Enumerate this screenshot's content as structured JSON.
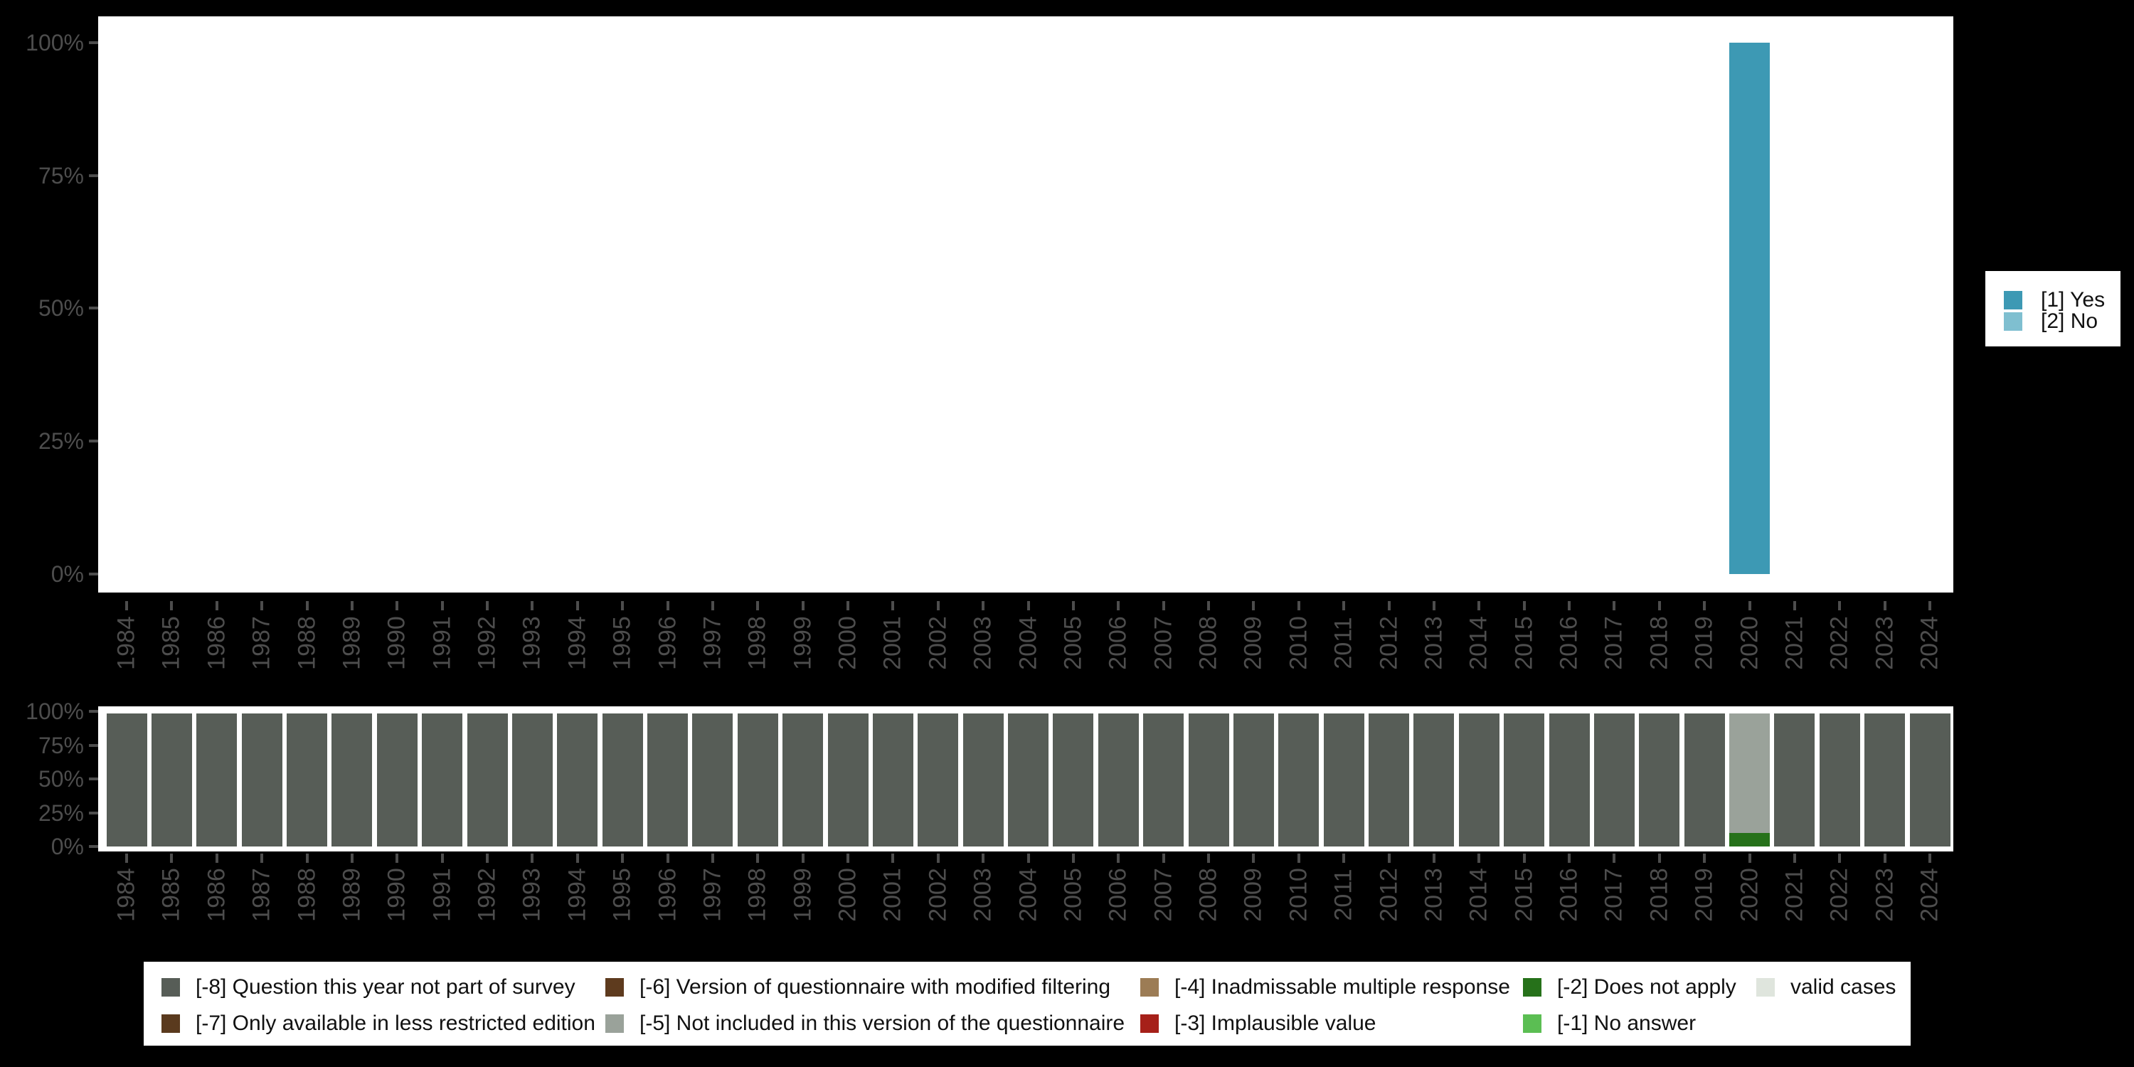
{
  "page": {
    "background": "#000000"
  },
  "chart_data": [
    {
      "id": "variable-availability",
      "type": "bar",
      "stacked": true,
      "unit": "percent",
      "grid": false,
      "categories": [
        "1984",
        "1985",
        "1986",
        "1987",
        "1988",
        "1989",
        "1990",
        "1991",
        "1992",
        "1993",
        "1994",
        "1995",
        "1996",
        "1997",
        "1998",
        "1999",
        "2000",
        "2001",
        "2002",
        "2003",
        "2004",
        "2005",
        "2006",
        "2007",
        "2008",
        "2009",
        "2010",
        "2011",
        "2012",
        "2013",
        "2014",
        "2015",
        "2016",
        "2017",
        "2018",
        "2019",
        "2020",
        "2021",
        "2022",
        "2023",
        "2024"
      ],
      "series": [
        {
          "name": "[1] Yes",
          "color": "#3D99B4",
          "values": [
            0,
            0,
            0,
            0,
            0,
            0,
            0,
            0,
            0,
            0,
            0,
            0,
            0,
            0,
            0,
            0,
            0,
            0,
            0,
            0,
            0,
            0,
            0,
            0,
            0,
            0,
            0,
            0,
            0,
            0,
            0,
            0,
            0,
            0,
            0,
            0,
            100,
            0,
            0,
            0,
            0
          ]
        },
        {
          "name": "[2] No",
          "color": "#7FBFD0",
          "values": [
            0,
            0,
            0,
            0,
            0,
            0,
            0,
            0,
            0,
            0,
            0,
            0,
            0,
            0,
            0,
            0,
            0,
            0,
            0,
            0,
            0,
            0,
            0,
            0,
            0,
            0,
            0,
            0,
            0,
            0,
            0,
            0,
            0,
            0,
            0,
            0,
            0,
            0,
            0,
            0,
            0
          ]
        }
      ],
      "y_axis": {
        "ticks": [
          "100%",
          "75%",
          "50%",
          "25%",
          "0%"
        ],
        "range": [
          0,
          100
        ]
      },
      "legend": {
        "position": "right",
        "items": [
          {
            "label": "[1] Yes",
            "color": "#3D99B4"
          },
          {
            "label": "[2] No",
            "color": "#7FBFD0"
          }
        ]
      }
    },
    {
      "id": "missing-values",
      "type": "bar",
      "stacked": true,
      "unit": "percent",
      "grid": false,
      "categories": [
        "1984",
        "1985",
        "1986",
        "1987",
        "1988",
        "1989",
        "1990",
        "1991",
        "1992",
        "1993",
        "1994",
        "1995",
        "1996",
        "1997",
        "1998",
        "1999",
        "2000",
        "2001",
        "2002",
        "2003",
        "2004",
        "2005",
        "2006",
        "2007",
        "2008",
        "2009",
        "2010",
        "2011",
        "2012",
        "2013",
        "2014",
        "2015",
        "2016",
        "2017",
        "2018",
        "2019",
        "2020",
        "2021",
        "2022",
        "2023",
        "2024"
      ],
      "series": [
        {
          "name": "[-8] Question this year not part of survey",
          "color": "#575D57",
          "values": [
            100,
            100,
            100,
            100,
            100,
            100,
            100,
            100,
            100,
            100,
            100,
            100,
            100,
            100,
            100,
            100,
            100,
            100,
            100,
            100,
            100,
            100,
            100,
            100,
            100,
            100,
            100,
            100,
            100,
            100,
            100,
            100,
            100,
            100,
            100,
            100,
            0,
            100,
            100,
            100,
            100
          ]
        },
        {
          "name": "[-2] Does not apply",
          "color": "#26711A",
          "values": [
            0,
            0,
            0,
            0,
            0,
            0,
            0,
            0,
            0,
            0,
            0,
            0,
            0,
            0,
            0,
            0,
            0,
            0,
            0,
            0,
            0,
            0,
            0,
            0,
            0,
            0,
            0,
            0,
            0,
            0,
            0,
            0,
            0,
            0,
            0,
            0,
            10,
            0,
            0,
            0,
            0
          ]
        },
        {
          "name": "[-5] Not included in this version of the questionnaire",
          "color": "#9AA29A",
          "values": [
            0,
            0,
            0,
            0,
            0,
            0,
            0,
            0,
            0,
            0,
            0,
            0,
            0,
            0,
            0,
            0,
            0,
            0,
            0,
            0,
            0,
            0,
            0,
            0,
            0,
            0,
            0,
            0,
            0,
            0,
            0,
            0,
            0,
            0,
            0,
            0,
            90,
            0,
            0,
            0,
            0
          ]
        }
      ],
      "y_axis": {
        "ticks": [
          "100%",
          "75%",
          "50%",
          "25%",
          "0%"
        ],
        "range": [
          0,
          100
        ]
      },
      "legend": {
        "position": "bottom",
        "items": [
          {
            "label": "[-8] Question this year not part of survey",
            "color": "#575D57"
          },
          {
            "label": "[-7] Only available in less restricted edition",
            "color": "#5A3A1E"
          },
          {
            "label": "[-6] Version of questionnaire with modified filtering",
            "color": "#5E3B1E"
          },
          {
            "label": "[-5] Not included in this version of the questionnaire",
            "color": "#9AA29A"
          },
          {
            "label": "[-4] Inadmissable multiple response",
            "color": "#9C7C55"
          },
          {
            "label": "[-3] Implausible value",
            "color": "#A62019"
          },
          {
            "label": "[-2] Does not apply",
            "color": "#26711A"
          },
          {
            "label": "[-1] No answer",
            "color": "#5BBE53"
          },
          {
            "label": "valid cases",
            "color": "#DFE5DD"
          }
        ]
      }
    }
  ]
}
